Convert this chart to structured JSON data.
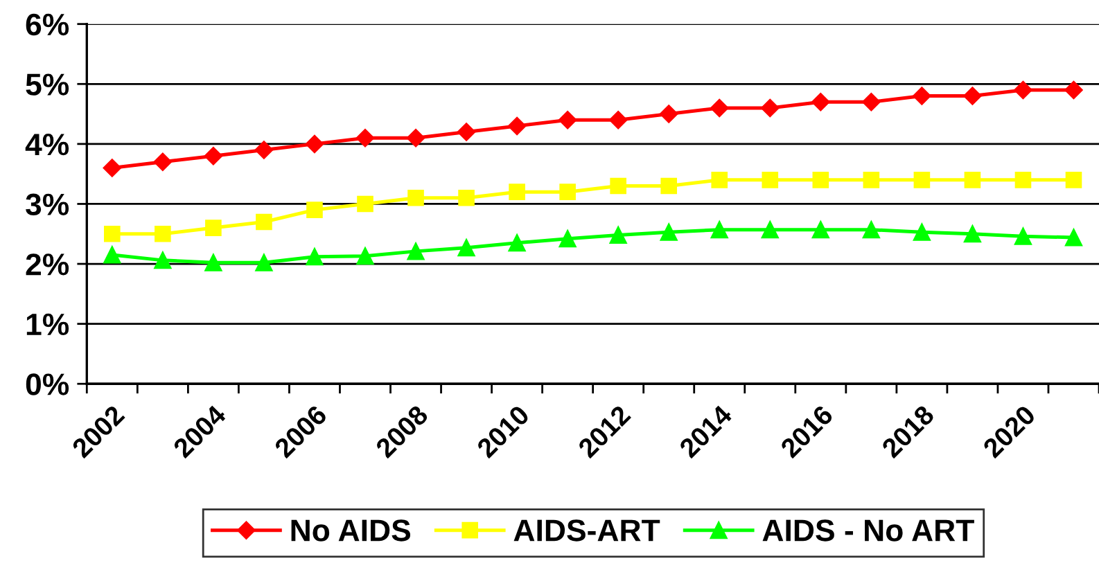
{
  "chart_data": {
    "type": "line",
    "categories": [
      "2002",
      null,
      "2004",
      null,
      "2006",
      null,
      "2008",
      null,
      "2010",
      null,
      "2012",
      null,
      "2014",
      null,
      "2016",
      null,
      "2018",
      null,
      "2020",
      null
    ],
    "series": [
      {
        "name": "No AIDS",
        "color": "#ff0000",
        "marker": "diamond",
        "values": [
          3.6,
          3.7,
          3.8,
          3.9,
          4.0,
          4.1,
          4.1,
          4.2,
          4.3,
          4.4,
          4.4,
          4.5,
          4.6,
          4.6,
          4.7,
          4.7,
          4.8,
          4.8,
          4.9,
          4.9
        ]
      },
      {
        "name": "AIDS-ART",
        "color": "#ffff00",
        "marker": "square",
        "values": [
          2.5,
          2.5,
          2.6,
          2.7,
          2.9,
          3.0,
          3.1,
          3.1,
          3.2,
          3.2,
          3.3,
          3.3,
          3.4,
          3.4,
          3.4,
          3.4,
          3.4,
          3.4,
          3.4,
          3.4
        ]
      },
      {
        "name": "AIDS - No ART",
        "color": "#00ff00",
        "marker": "triangle",
        "values": [
          2.15,
          2.06,
          2.02,
          2.02,
          2.12,
          2.13,
          2.21,
          2.27,
          2.35,
          2.42,
          2.48,
          2.53,
          2.57,
          2.57,
          2.57,
          2.57,
          2.53,
          2.5,
          2.46,
          2.44
        ]
      }
    ],
    "ylim": [
      0,
      6
    ],
    "yticks": [
      {
        "value": 0,
        "label": "0%"
      },
      {
        "value": 1,
        "label": "1%"
      },
      {
        "value": 2,
        "label": "2%"
      },
      {
        "value": 3,
        "label": "3%"
      },
      {
        "value": 4,
        "label": "4%"
      },
      {
        "value": 5,
        "label": "5%"
      },
      {
        "value": 6,
        "label": "6%"
      }
    ],
    "grid": "y",
    "legend": "bottom"
  }
}
